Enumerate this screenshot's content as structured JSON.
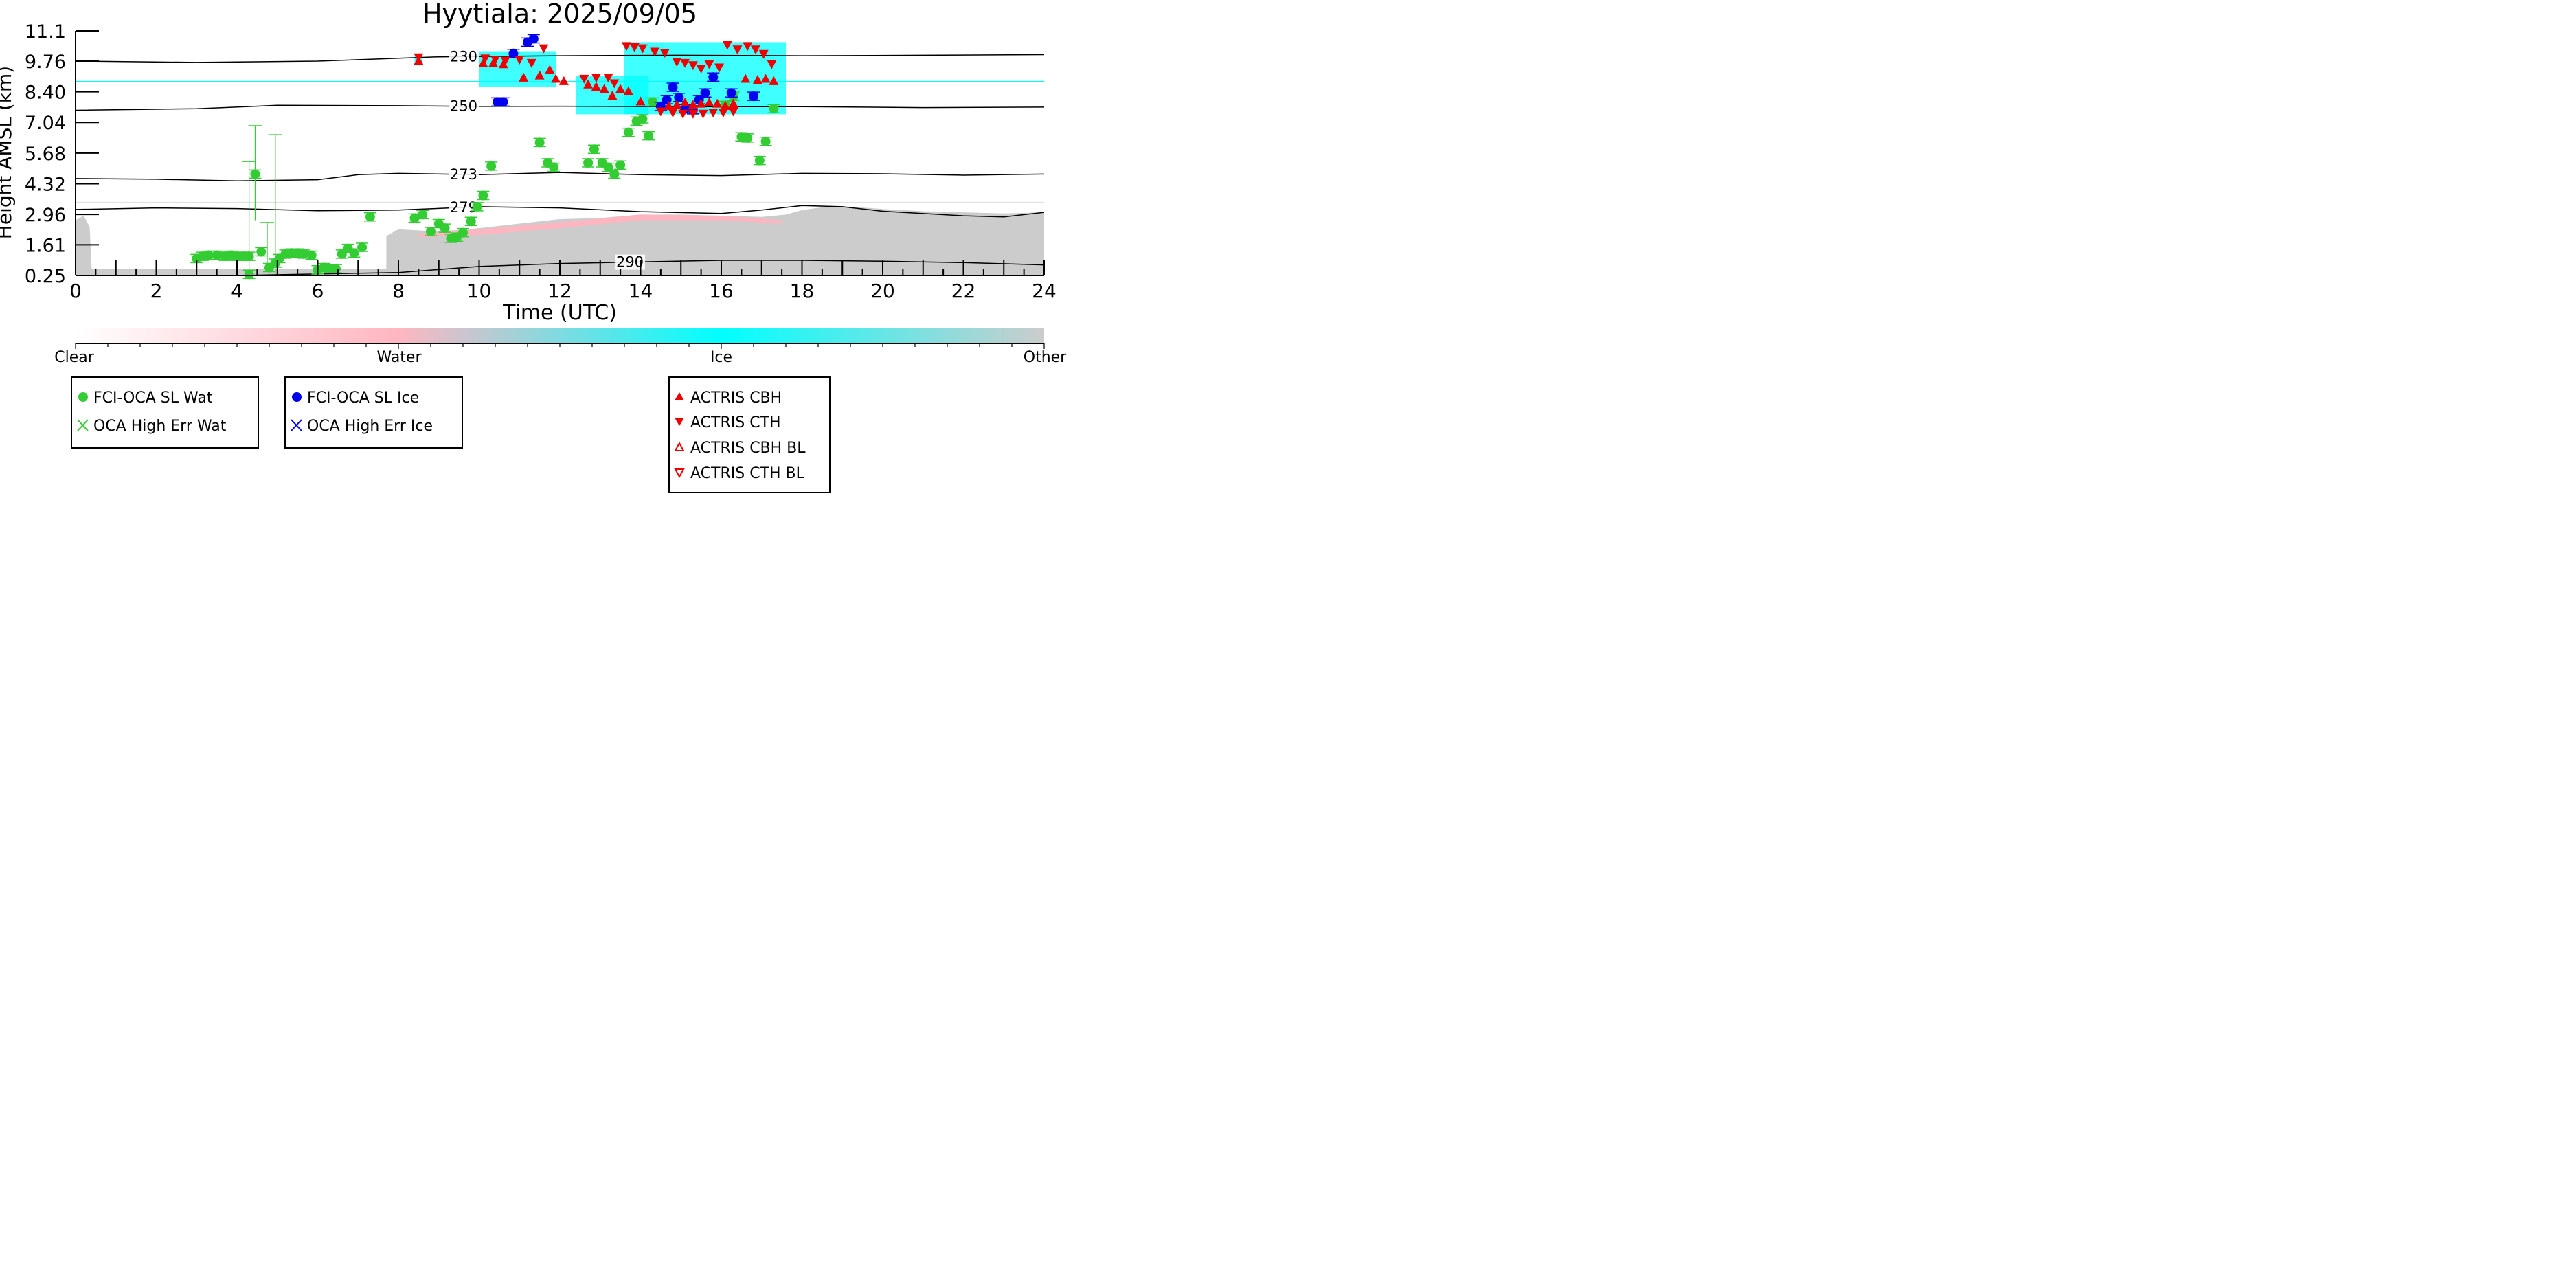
{
  "chart_data": {
    "type": "scatter",
    "title": "Hyytiala: 2025/09/05",
    "xlabel": "Time (UTC)",
    "ylabel": "Height AMSL (km)",
    "xlim": [
      0,
      24
    ],
    "ylim": [
      0.25,
      11.1
    ],
    "x_ticks": [
      0,
      2,
      4,
      6,
      8,
      10,
      12,
      14,
      16,
      18,
      20,
      22,
      24
    ],
    "y_ticks": [
      "0.25",
      "1.61",
      "2.96",
      "4.32",
      "5.68",
      "7.04",
      "8.40",
      "9.76",
      "11.1"
    ],
    "grid": false,
    "colors": {
      "water_point": "#33cc33",
      "ice_point": "#0000ee",
      "actris": "#ee0000",
      "clear": "#ffffff",
      "water": "#ffb6c1",
      "ice": "#00ffff",
      "other": "#cccccc"
    },
    "isotherms": [
      {
        "label": "230",
        "x": [
          0,
          3,
          6,
          9,
          12,
          15,
          18,
          21,
          24
        ],
        "y": [
          9.76,
          9.7,
          9.76,
          9.95,
          10.0,
          10.02,
          10.0,
          10.02,
          10.05
        ]
      },
      {
        "label": "250",
        "x": [
          0,
          3,
          5,
          8,
          10,
          12,
          15,
          18,
          21,
          24
        ],
        "y": [
          7.58,
          7.65,
          7.8,
          7.78,
          7.75,
          7.76,
          7.74,
          7.74,
          7.7,
          7.72
        ]
      },
      {
        "label": "273",
        "x": [
          0,
          2,
          4,
          6,
          7,
          8,
          10,
          12,
          14,
          16,
          18,
          20,
          22,
          24
        ],
        "y": [
          4.55,
          4.52,
          4.45,
          4.5,
          4.72,
          4.78,
          4.72,
          4.82,
          4.72,
          4.68,
          4.78,
          4.76,
          4.7,
          4.75
        ]
      },
      {
        "label": "279",
        "x": [
          0,
          2,
          4,
          6,
          8,
          10,
          12,
          14,
          16,
          17,
          18,
          19,
          20,
          22,
          23,
          24
        ],
        "y": [
          3.18,
          3.25,
          3.22,
          3.12,
          3.15,
          3.3,
          3.25,
          3.08,
          3.0,
          3.15,
          3.35,
          3.3,
          3.1,
          2.9,
          2.85,
          3.05
        ]
      },
      {
        "label": "290",
        "x": [
          0,
          4,
          8,
          10,
          12,
          14,
          16,
          18,
          20,
          22,
          24
        ],
        "y": [
          0.25,
          0.25,
          0.38,
          0.65,
          0.78,
          0.85,
          0.92,
          0.92,
          0.88,
          0.82,
          0.72
        ]
      }
    ],
    "series": [
      {
        "name": "FCI-OCA SL Wat",
        "marker": "filled-circle",
        "color": "#33cc33",
        "points": [
          [
            3.0,
            1.0
          ],
          [
            3.15,
            1.1
          ],
          [
            3.3,
            1.15
          ],
          [
            3.5,
            1.15
          ],
          [
            3.7,
            1.1
          ],
          [
            3.85,
            1.15
          ],
          [
            4.0,
            1.1
          ],
          [
            4.15,
            1.1
          ],
          [
            4.3,
            1.1
          ],
          [
            4.3,
            0.3
          ],
          [
            4.45,
            4.75
          ],
          [
            4.6,
            1.3
          ],
          [
            4.8,
            0.6
          ],
          [
            4.95,
            0.8
          ],
          [
            5.05,
            1.0
          ],
          [
            5.2,
            1.2
          ],
          [
            5.35,
            1.25
          ],
          [
            5.5,
            1.25
          ],
          [
            5.65,
            1.2
          ],
          [
            5.85,
            1.15
          ],
          [
            6.0,
            0.5
          ],
          [
            6.15,
            0.6
          ],
          [
            6.3,
            0.55
          ],
          [
            6.45,
            0.55
          ],
          [
            6.6,
            1.2
          ],
          [
            6.75,
            1.45
          ],
          [
            6.9,
            1.25
          ],
          [
            7.1,
            1.5
          ],
          [
            7.3,
            2.85
          ],
          [
            8.4,
            2.8
          ],
          [
            8.6,
            2.95
          ],
          [
            8.8,
            2.2
          ],
          [
            9.0,
            2.55
          ],
          [
            9.15,
            2.35
          ],
          [
            9.3,
            1.9
          ],
          [
            9.45,
            1.95
          ],
          [
            9.6,
            2.15
          ],
          [
            9.8,
            2.65
          ],
          [
            9.95,
            3.3
          ],
          [
            10.1,
            3.8
          ],
          [
            10.3,
            5.1
          ],
          [
            11.5,
            6.15
          ],
          [
            11.7,
            5.25
          ],
          [
            11.85,
            5.05
          ],
          [
            12.7,
            5.25
          ],
          [
            12.85,
            5.85
          ],
          [
            13.05,
            5.25
          ],
          [
            13.2,
            5.05
          ],
          [
            13.35,
            4.75
          ],
          [
            13.5,
            5.15
          ],
          [
            13.7,
            6.6
          ],
          [
            13.9,
            7.1
          ],
          [
            14.05,
            7.2
          ],
          [
            14.2,
            6.45
          ],
          [
            14.3,
            7.95
          ],
          [
            16.1,
            7.8
          ],
          [
            16.3,
            8.2
          ],
          [
            16.5,
            6.4
          ],
          [
            16.65,
            6.35
          ],
          [
            16.95,
            5.35
          ],
          [
            17.1,
            6.2
          ],
          [
            17.3,
            7.65
          ]
        ]
      },
      {
        "name": "FCI-OCA SL Ice",
        "marker": "filled-circle",
        "color": "#0000ee",
        "points": [
          [
            10.45,
            7.95
          ],
          [
            10.6,
            7.95
          ],
          [
            10.85,
            10.1
          ],
          [
            11.2,
            10.6
          ],
          [
            11.35,
            10.75
          ],
          [
            14.5,
            7.75
          ],
          [
            14.65,
            8.05
          ],
          [
            14.8,
            8.6
          ],
          [
            14.95,
            8.15
          ],
          [
            15.1,
            7.65
          ],
          [
            15.3,
            7.6
          ],
          [
            15.45,
            8.05
          ],
          [
            15.6,
            8.35
          ],
          [
            15.8,
            9.05
          ],
          [
            16.25,
            8.35
          ],
          [
            16.8,
            8.2
          ]
        ]
      },
      {
        "name": "OCA High Err Wat",
        "marker": "x",
        "color": "#33cc33",
        "points": []
      },
      {
        "name": "OCA High Err Ice",
        "marker": "x",
        "color": "#0000ee",
        "points": []
      },
      {
        "name": "ACTRIS CBH",
        "marker": "filled-triangle-up",
        "color": "#ee0000",
        "points": [
          [
            8.5,
            9.75
          ],
          [
            10.1,
            9.65
          ],
          [
            10.35,
            9.65
          ],
          [
            10.6,
            9.6
          ],
          [
            11.1,
            9.0
          ],
          [
            11.5,
            9.1
          ],
          [
            11.75,
            9.35
          ],
          [
            11.9,
            8.95
          ],
          [
            12.1,
            8.85
          ],
          [
            12.7,
            8.7
          ],
          [
            12.9,
            8.6
          ],
          [
            13.1,
            8.5
          ],
          [
            13.3,
            8.2
          ],
          [
            13.5,
            8.5
          ],
          [
            13.7,
            8.4
          ],
          [
            14.0,
            7.95
          ],
          [
            14.7,
            7.75
          ],
          [
            14.9,
            7.8
          ],
          [
            15.1,
            7.9
          ],
          [
            15.3,
            7.8
          ],
          [
            15.5,
            7.85
          ],
          [
            15.7,
            7.9
          ],
          [
            15.9,
            7.85
          ],
          [
            16.1,
            7.75
          ],
          [
            16.3,
            7.85
          ],
          [
            16.6,
            8.95
          ],
          [
            16.9,
            8.9
          ],
          [
            17.1,
            8.95
          ],
          [
            17.3,
            8.85
          ]
        ]
      },
      {
        "name": "ACTRIS CTH",
        "marker": "filled-triangle-down",
        "color": "#ee0000",
        "points": [
          [
            8.5,
            9.95
          ],
          [
            10.15,
            9.9
          ],
          [
            10.4,
            9.85
          ],
          [
            10.65,
            9.8
          ],
          [
            11.0,
            9.85
          ],
          [
            11.3,
            9.7
          ],
          [
            11.6,
            10.35
          ],
          [
            12.6,
            9.0
          ],
          [
            12.9,
            9.05
          ],
          [
            13.2,
            9.05
          ],
          [
            13.35,
            8.8
          ],
          [
            13.65,
            10.45
          ],
          [
            13.85,
            10.4
          ],
          [
            14.05,
            10.35
          ],
          [
            14.35,
            10.2
          ],
          [
            14.6,
            10.15
          ],
          [
            14.9,
            9.75
          ],
          [
            15.1,
            9.7
          ],
          [
            15.3,
            9.6
          ],
          [
            15.5,
            9.45
          ],
          [
            15.7,
            9.65
          ],
          [
            15.95,
            9.5
          ],
          [
            16.15,
            10.5
          ],
          [
            16.4,
            10.3
          ],
          [
            16.65,
            10.45
          ],
          [
            16.85,
            10.3
          ],
          [
            17.05,
            10.1
          ],
          [
            17.25,
            9.65
          ],
          [
            14.5,
            7.55
          ],
          [
            14.8,
            7.5
          ],
          [
            15.05,
            7.45
          ],
          [
            15.3,
            7.45
          ],
          [
            15.55,
            7.45
          ],
          [
            15.8,
            7.5
          ],
          [
            16.05,
            7.5
          ],
          [
            16.3,
            7.55
          ]
        ]
      },
      {
        "name": "ACTRIS CBH BL",
        "marker": "open-triangle-up",
        "color": "#ee0000",
        "points": []
      },
      {
        "name": "ACTRIS CTH BL",
        "marker": "open-triangle-down",
        "color": "#ee0000",
        "points": []
      }
    ],
    "colorbar": {
      "labels": [
        "Clear",
        "Water",
        "Ice",
        "Other"
      ],
      "stops": [
        "#ffffff",
        "#ffb6c1",
        "#00ffff",
        "#cccccc"
      ]
    },
    "legends": [
      {
        "entries": [
          "FCI-OCA SL Wat",
          "OCA High Err Wat"
        ]
      },
      {
        "entries": [
          "FCI-OCA SL Ice",
          "OCA High Err Ice"
        ]
      },
      {
        "entries": [
          "ACTRIS CBH",
          "ACTRIS CTH",
          "ACTRIS CBH BL",
          "ACTRIS CTH BL"
        ]
      }
    ]
  }
}
